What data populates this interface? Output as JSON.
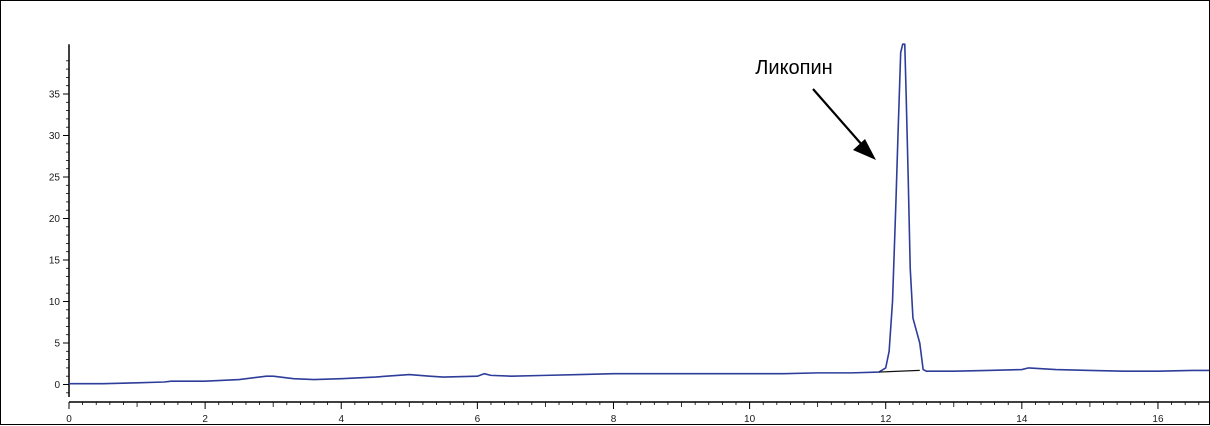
{
  "chart_data": {
    "type": "line",
    "title": "",
    "xlabel": "",
    "ylabel": "",
    "xlim": [
      0,
      16.75
    ],
    "ylim": [
      -1.5,
      41
    ],
    "x_ticks": [
      0,
      2,
      4,
      6,
      8,
      10,
      12,
      14,
      16
    ],
    "y_ticks": [
      0,
      5,
      10,
      15,
      20,
      25,
      30,
      35
    ],
    "grid": false,
    "legend": "none",
    "colors": {
      "series": "#2e3d99",
      "axis": "#000000",
      "arrow": "#000000"
    },
    "series": [
      {
        "x": [
          0,
          0.5,
          1.0,
          1.4,
          1.5,
          2.0,
          2.5,
          2.9,
          3.0,
          3.3,
          3.6,
          4.0,
          4.5,
          5.0,
          5.3,
          5.5,
          6.0,
          6.1,
          6.2,
          6.5,
          7.0,
          7.5,
          8.0,
          8.1,
          8.5,
          9.0,
          9.5,
          10.0,
          10.5,
          11.0,
          11.5,
          11.9,
          12.0,
          12.05,
          12.1,
          12.15,
          12.18,
          12.2,
          12.22,
          12.25,
          12.28,
          12.3,
          12.33,
          12.36,
          12.4,
          12.45,
          12.5,
          12.55,
          12.6,
          13.0,
          13.5,
          14.0,
          14.1,
          14.5,
          15.0,
          15.5,
          16.0,
          16.5,
          16.75
        ],
        "y": [
          0.1,
          0.1,
          0.2,
          0.3,
          0.4,
          0.4,
          0.6,
          1.0,
          1.0,
          0.7,
          0.6,
          0.7,
          0.9,
          1.2,
          1.0,
          0.9,
          1.0,
          1.3,
          1.1,
          1.0,
          1.1,
          1.2,
          1.3,
          1.3,
          1.3,
          1.3,
          1.3,
          1.3,
          1.3,
          1.4,
          1.4,
          1.5,
          2.0,
          4.0,
          10.0,
          22.0,
          30.0,
          35.0,
          40.0,
          42.0,
          41.0,
          35.0,
          25.0,
          14.0,
          8.0,
          6.5,
          5.0,
          1.8,
          1.6,
          1.6,
          1.7,
          1.8,
          2.0,
          1.8,
          1.7,
          1.6,
          1.6,
          1.7,
          1.7
        ]
      }
    ],
    "baseline": {
      "x": [
        11.9,
        12.5
      ],
      "y": [
        1.5,
        1.7
      ]
    },
    "annotations": [
      {
        "label": "Ликопин"
      }
    ]
  }
}
